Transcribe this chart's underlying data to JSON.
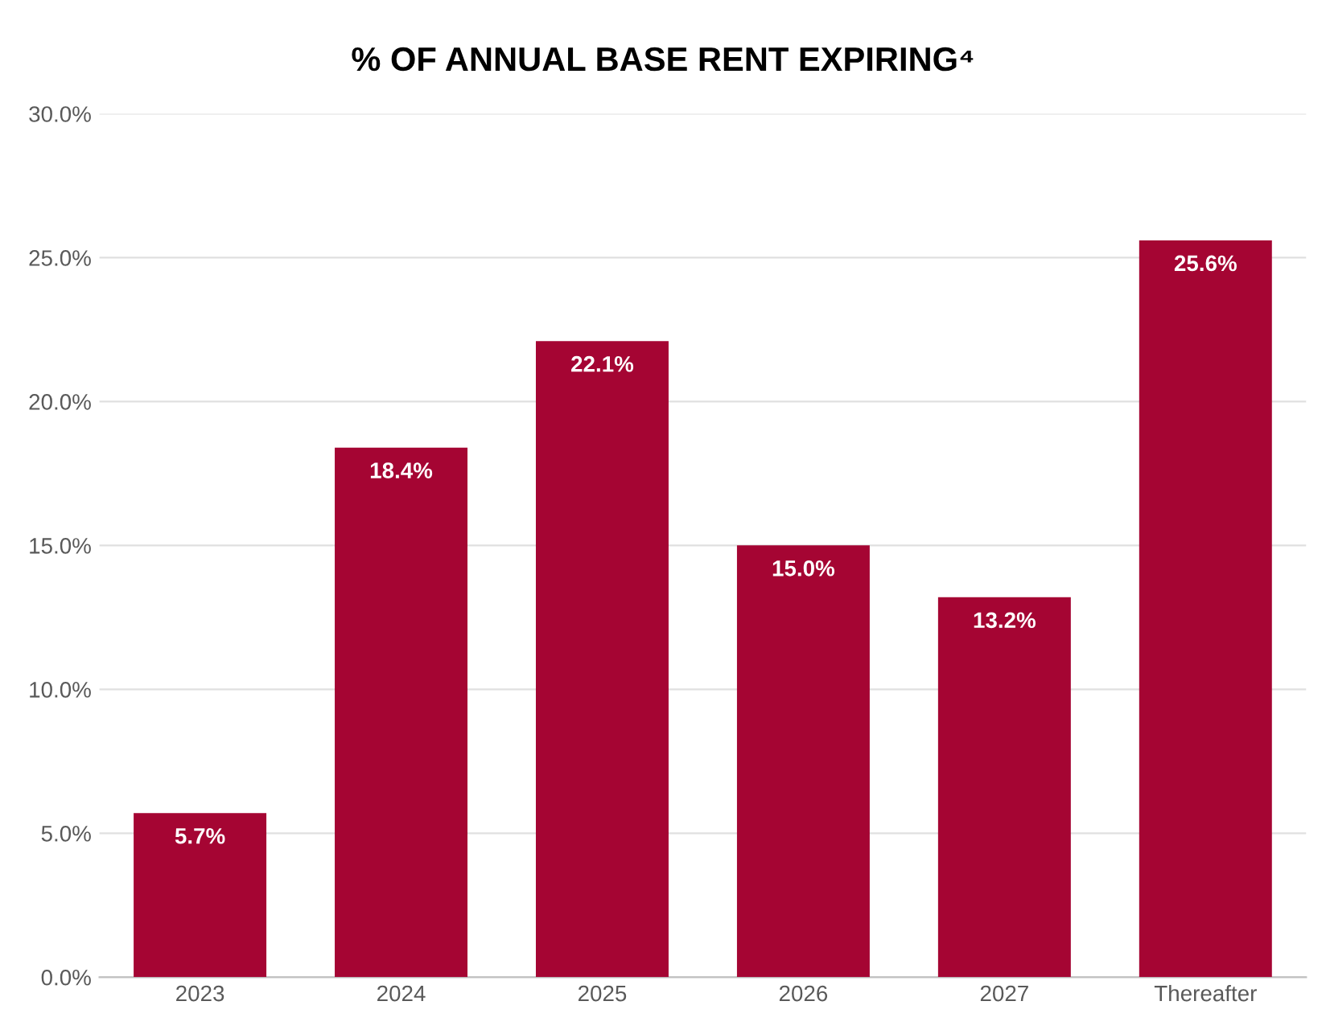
{
  "chart_data": {
    "type": "bar",
    "title": "% OF ANNUAL BASE RENT EXPIRING⁴",
    "categories": [
      "2023",
      "2024",
      "2025",
      "2026",
      "2027",
      "Thereafter"
    ],
    "values": [
      5.7,
      18.4,
      22.1,
      15.0,
      13.2,
      25.6
    ],
    "value_labels": [
      "5.7%",
      "18.4%",
      "22.1%",
      "15.0%",
      "13.2%",
      "25.6%"
    ],
    "color": "#a50533",
    "ylim": [
      0,
      30
    ],
    "yticks": [
      {
        "value": 0,
        "label": "0.0%"
      },
      {
        "value": 5,
        "label": "5.0%"
      },
      {
        "value": 10,
        "label": "10.0%"
      },
      {
        "value": 15,
        "label": "15.0%"
      },
      {
        "value": 20,
        "label": "20.0%"
      },
      {
        "value": 25,
        "label": "25.0%"
      },
      {
        "value": 30,
        "label": "30.0%"
      }
    ],
    "grid": "y"
  }
}
